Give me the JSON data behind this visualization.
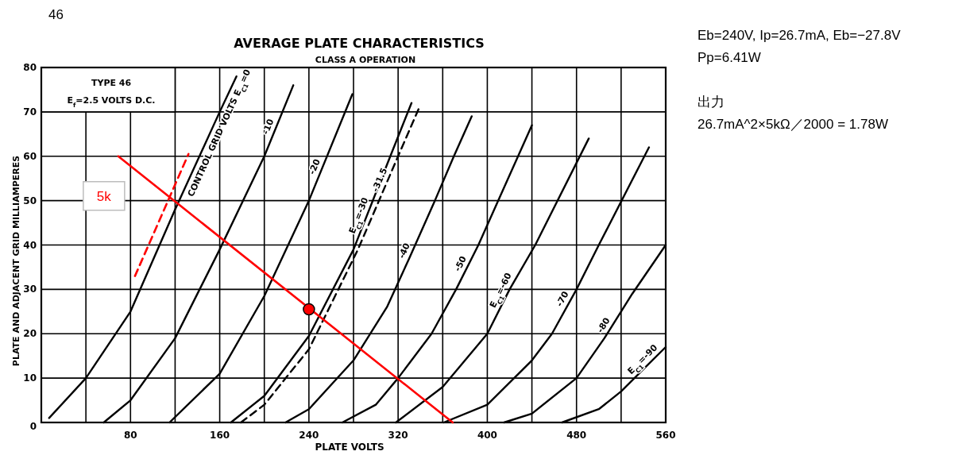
{
  "chart_data": {
    "type": "line",
    "title": "AVERAGE PLATE CHARACTERISTICS",
    "subtitle": "CLASS A OPERATION",
    "xlabel": "PLATE VOLTS",
    "ylabel": "PLATE AND ADJACENT GRID MILLIAMPERES",
    "xlim": [
      0,
      560
    ],
    "ylim": [
      0,
      80
    ],
    "xticks": [
      {
        "value": 0,
        "label": null
      },
      {
        "value": 40,
        "label": null
      },
      80,
      {
        "value": 120,
        "label": null
      },
      160,
      {
        "value": 200,
        "label": null
      },
      240,
      {
        "value": 280,
        "label": null
      },
      320,
      {
        "value": 360,
        "label": null
      },
      400,
      {
        "value": 440,
        "label": null
      },
      480,
      {
        "value": 520,
        "label": null
      },
      560
    ],
    "yticks": [
      0,
      10,
      20,
      30,
      40,
      50,
      60,
      70,
      80
    ],
    "grid": true,
    "series": [
      {
        "name": "CONTROL GRID VOLTS E$_{C1}$=0",
        "color": "#000000",
        "line_style": "solid",
        "x": [
          7,
          40,
          80,
          120,
          160,
          175
        ],
        "values": [
          1,
          10,
          25,
          48,
          70,
          78
        ]
      },
      {
        "name": "-10",
        "color": "#000000",
        "line_style": "solid",
        "x": [
          56,
          80,
          120,
          160,
          200,
          226
        ],
        "values": [
          0,
          5,
          19,
          39,
          60,
          76
        ]
      },
      {
        "name": "-20",
        "color": "#000000",
        "line_style": "solid",
        "x": [
          115,
          160,
          200,
          240,
          279
        ],
        "values": [
          0,
          11,
          28.5,
          50,
          74
        ]
      },
      {
        "name": "E$_{C1}$=-30",
        "color": "#000000",
        "line_style": "solid",
        "x": [
          170,
          200,
          240,
          280,
          313,
          332
        ],
        "values": [
          0,
          6,
          19.5,
          39,
          60,
          72
        ]
      },
      {
        "name": "-31.5",
        "color": "#000000",
        "line_style": "dashed",
        "x": [
          179,
          200,
          240,
          284,
          320,
          339
        ],
        "values": [
          0,
          4,
          16.5,
          39,
          60,
          71
        ]
      },
      {
        "name": "-40",
        "color": "#000000",
        "line_style": "solid",
        "x": [
          219,
          240,
          280,
          310,
          330,
          353,
          370,
          386
        ],
        "values": [
          0,
          3,
          14,
          26,
          37,
          50,
          60,
          69
        ]
      },
      {
        "name": "-50",
        "color": "#000000",
        "line_style": "solid",
        "x": [
          270,
          300,
          320,
          350,
          372,
          392,
          440
        ],
        "values": [
          0,
          4,
          10,
          20,
          30,
          40,
          67
        ]
      },
      {
        "name": "E$_{C1}$=-60",
        "color": "#000000",
        "line_style": "solid",
        "x": [
          318,
          360,
          400,
          420,
          443,
          491
        ],
        "values": [
          0,
          8,
          20,
          30,
          40,
          64
        ]
      },
      {
        "name": "-70",
        "color": "#000000",
        "line_style": "solid",
        "x": [
          361,
          400,
          440,
          458,
          480,
          500,
          545
        ],
        "values": [
          0,
          4,
          14,
          20,
          30,
          40,
          62
        ]
      },
      {
        "name": "-80",
        "color": "#000000",
        "line_style": "solid",
        "x": [
          415,
          440,
          480,
          505,
          530,
          560
        ],
        "values": [
          0,
          2,
          10,
          19,
          29,
          40
        ]
      },
      {
        "name": "E$_{C1}$=-90",
        "color": "#000000",
        "line_style": "solid",
        "x": [
          467,
          500,
          520,
          540,
          560
        ],
        "values": [
          0,
          3,
          7,
          12,
          17
        ]
      },
      {
        "name": "5k",
        "color": "#ff0000",
        "line_style": "solid",
        "x": [
          69,
          369
        ],
        "values": [
          60,
          0
        ]
      },
      {
        "color": "#ff0000",
        "line_style": "dashed",
        "x": [
          84,
          132
        ],
        "values": [
          33,
          60.5
        ]
      },
      {
        "type": "scatter",
        "color": "#ff0000",
        "marker": "circle",
        "x": [
          240
        ],
        "values": [
          25.5
        ]
      }
    ],
    "annotations": [
      "46",
      "TYPE 46",
      "E$_{f}$=2.5 VOLTS D.C.",
      "Eb=240V, Ip=26.7mA, Eb=−27.8V",
      "Pp=6.41W",
      "出力",
      "26.7mA^2×5kΩ／2000 = 1.78W"
    ]
  }
}
